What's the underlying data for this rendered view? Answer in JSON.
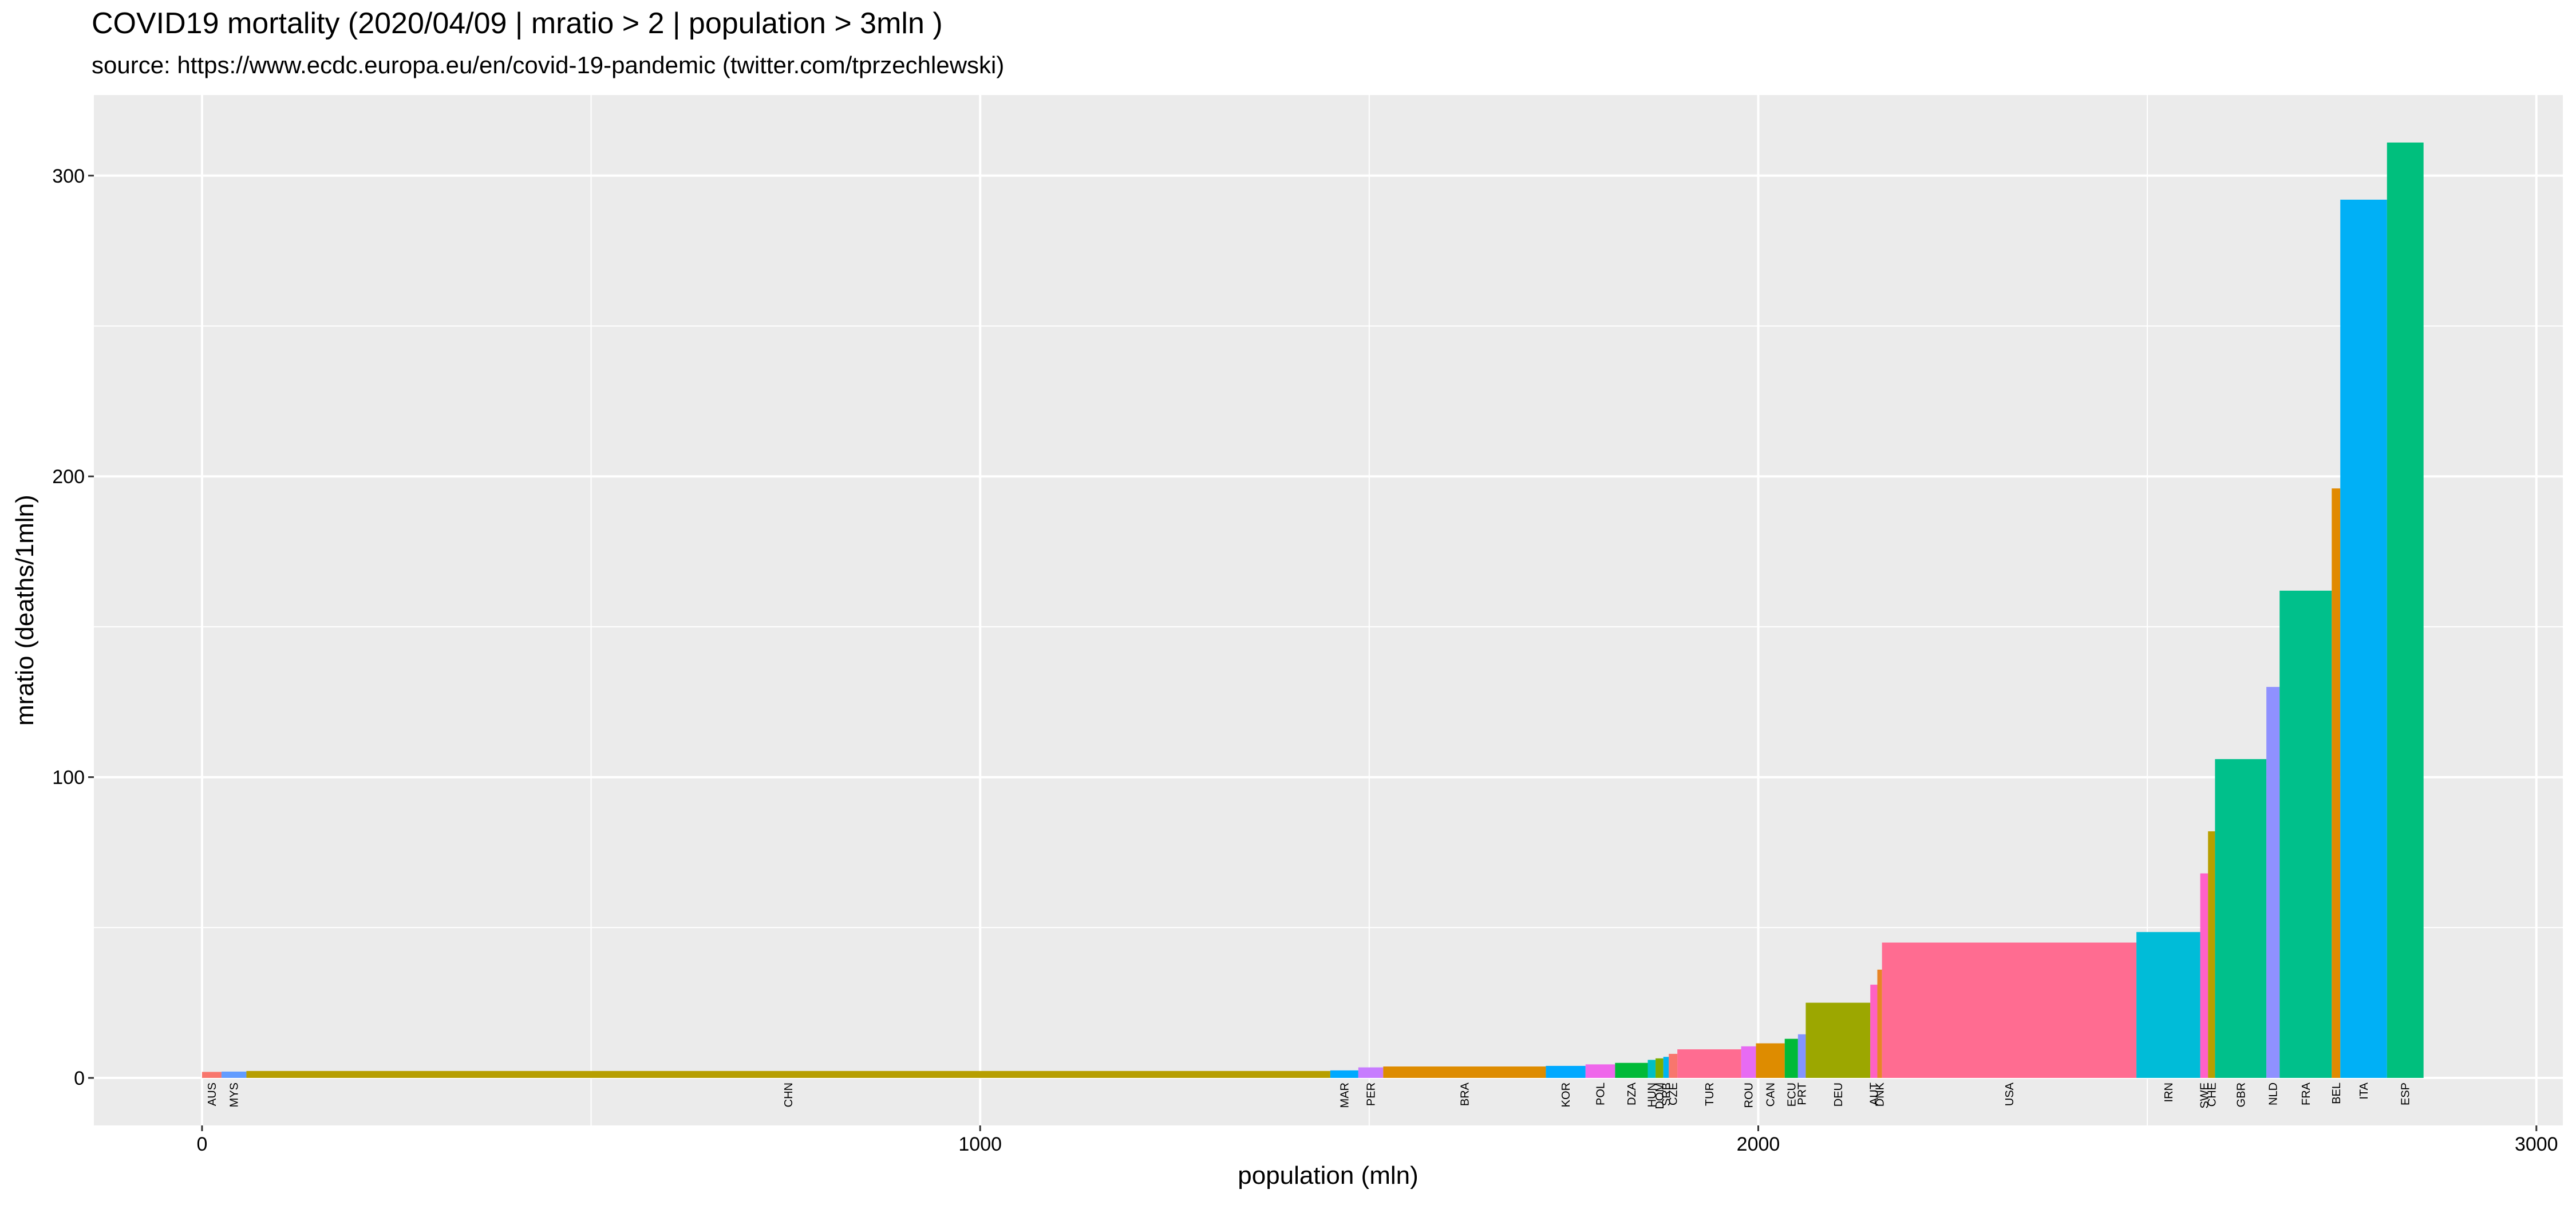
{
  "chart_data": {
    "type": "variable-width-bar",
    "title": "COVID19 mortality (2020/04/09 | mratio > 2 | population > 3mln )",
    "subtitle": "source: https://www.ecdc.europa.eu/en/covid-19-pandemic (twitter.com/tprzechlewski)",
    "x_label": "population (mln)",
    "y_label": "mratio (deaths/1mln)",
    "categories": [
      "AUS",
      "MYS",
      "CHN",
      "MAR",
      "PER",
      "BRA",
      "KOR",
      "POL",
      "DZA",
      "HUN",
      "DOM",
      "SRB",
      "CZE",
      "TUR",
      "ROU",
      "CAN",
      "ECU",
      "PRT",
      "DEU",
      "AUT",
      "DNK",
      "USA",
      "IRN",
      "SWE",
      "CHE",
      "GBR",
      "NLD",
      "FRA",
      "BEL",
      "ITA",
      "ESP"
    ],
    "widths": [
      25,
      32,
      1393,
      36,
      32,
      209,
      51,
      38,
      42,
      10,
      10,
      7,
      11,
      82,
      19,
      37,
      17,
      10,
      83,
      9,
      6,
      327,
      82,
      10,
      9,
      66,
      17,
      67,
      11,
      60,
      47
    ],
    "values": [
      2,
      2.1,
      2.3,
      2.5,
      3.5,
      3.8,
      4,
      4.5,
      5,
      6,
      6.5,
      7,
      8,
      9.5,
      10.5,
      11.5,
      13,
      14.5,
      25,
      31,
      36,
      45,
      48.5,
      68,
      82,
      106,
      130,
      162,
      196,
      292,
      311
    ],
    "colors": [
      "#F8766D",
      "#619CFF",
      "#B79F00",
      "#00A9FF",
      "#C77CFF",
      "#DE8C00",
      "#00A9FF",
      "#EF67EB",
      "#00BA38",
      "#00BFC4",
      "#7CAE00",
      "#00B4F0",
      "#F8766D",
      "#FF6C91",
      "#E76BF3",
      "#DE8C00",
      "#00BA38",
      "#8494FF",
      "#9CA700",
      "#FF61C3",
      "#E88526",
      "#FF6C91",
      "#00BCD8",
      "#FF61C9",
      "#B79F00",
      "#00C08B",
      "#8F91FF",
      "#00C08B",
      "#E18A00",
      "#00B0F6",
      "#00BF7D"
    ],
    "xlim": [
      -139,
      3034
    ],
    "ylim": [
      -15.8,
      326.8
    ],
    "xticks": [
      0,
      1000,
      2000,
      3000
    ],
    "yticks": [
      0,
      100,
      200,
      300
    ],
    "grid": true
  }
}
